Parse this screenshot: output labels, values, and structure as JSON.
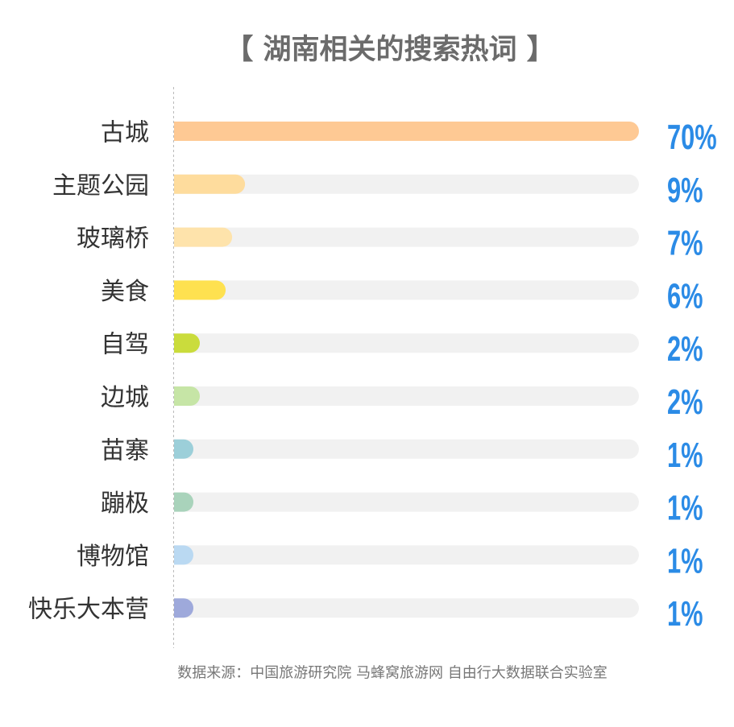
{
  "chart_data": {
    "type": "bar",
    "orientation": "horizontal",
    "title": "【 湖南相关的搜索热词 】",
    "categories": [
      "古城",
      "主题公园",
      "玻璃桥",
      "美食",
      "自驾",
      "边城",
      "苗寨",
      "蹦极",
      "博物馆",
      "快乐大本营"
    ],
    "values": [
      70,
      9,
      7,
      6,
      2,
      2,
      1,
      1,
      1,
      1
    ],
    "value_labels": [
      "70%",
      "9%",
      "7%",
      "6%",
      "2%",
      "2%",
      "1%",
      "1%",
      "1%",
      "1%"
    ],
    "xlim": [
      0,
      70
    ],
    "grid": false,
    "colors": [
      "#fec994",
      "#fedc9d",
      "#fee3ab",
      "#fee150",
      "#cadc3c",
      "#c6e5a6",
      "#9ccfd9",
      "#a9d3bb",
      "#bad9f2",
      "#9ea9db"
    ],
    "track_color": "#f1f1f1",
    "value_label_color": "#2b8be6",
    "axis_line_color": "#bbbbbb"
  },
  "footer": {
    "source": "数据来源：中国旅游研究院 马蜂窝旅游网 自由行大数据联合实验室"
  }
}
